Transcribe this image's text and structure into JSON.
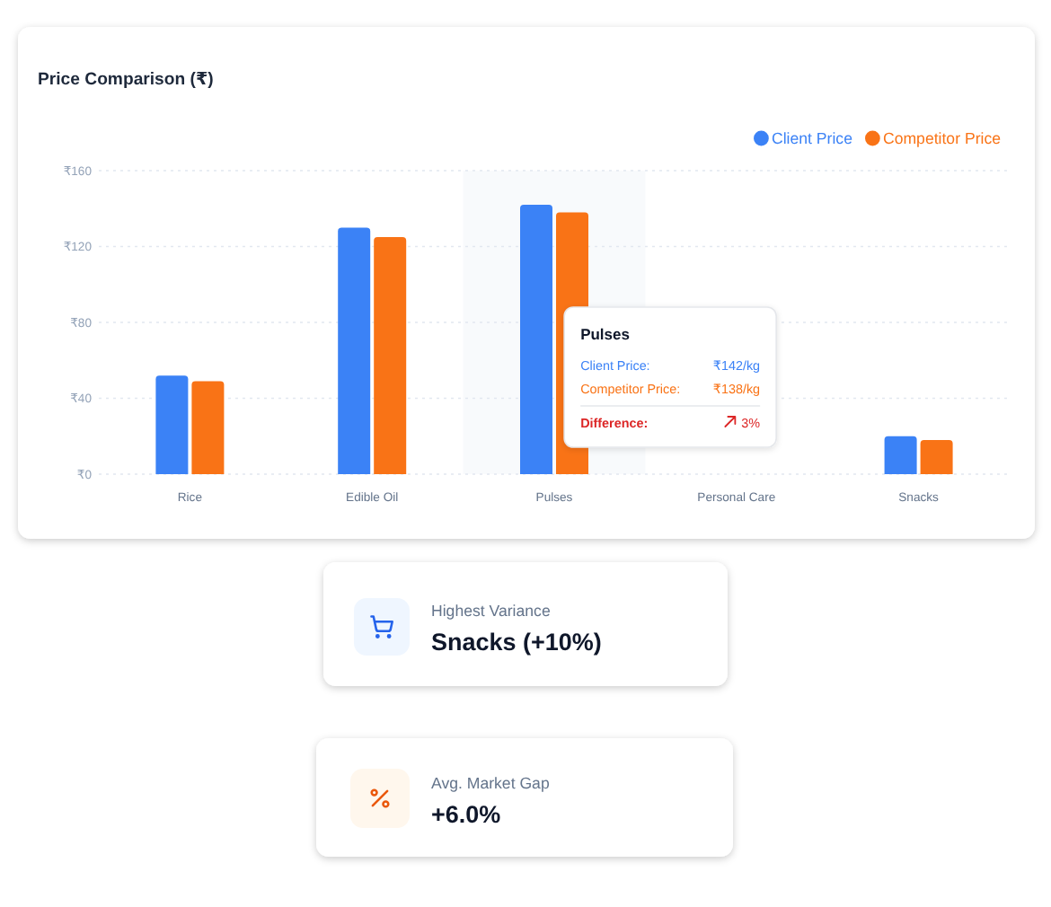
{
  "chart_data": [
    {
      "type": "bar",
      "title": "Price Comparison (₹)",
      "categories": [
        "Rice",
        "Edible Oil",
        "Pulses",
        "Personal Care",
        "Snacks"
      ],
      "series": [
        {
          "name": "Client Price",
          "color": "#3b82f6",
          "values": [
            52,
            130,
            142,
            null,
            20
          ]
        },
        {
          "name": "Competitor Price",
          "color": "#f97316",
          "values": [
            49,
            125,
            138,
            null,
            18
          ]
        }
      ],
      "ylim": [
        0,
        160
      ],
      "yticks": [
        {
          "value": 0,
          "label": "₹0"
        },
        {
          "value": 40,
          "label": "₹40"
        },
        {
          "value": 80,
          "label": "₹80"
        },
        {
          "value": 120,
          "label": "₹120"
        },
        {
          "value": 160,
          "label": "₹160"
        }
      ],
      "grid": "y",
      "legend": "top right",
      "bands": [
        {
          "axis": "x",
          "from": "Pulses",
          "to": "Pulses",
          "color": "#f8fafc"
        }
      ],
      "annotations": [
        "Pulses",
        "Client Price:",
        "₹142/kg",
        "Competitor Price:",
        "₹138/kg",
        "Difference:",
        "3%"
      ]
    },
    {
      "type": "other",
      "title": "Highest Variance",
      "annotations": [
        "Snacks (+10%)"
      ]
    },
    {
      "type": "other",
      "title": "Avg. Market Gap",
      "annotations": [
        "+6.0%"
      ]
    }
  ]
}
